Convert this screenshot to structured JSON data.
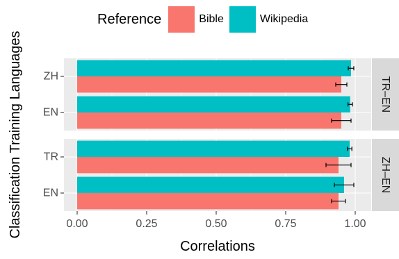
{
  "chart_data": {
    "type": "bar",
    "orientation": "horizontal",
    "xlabel": "Correlations",
    "ylabel": "Classification Training Languages",
    "xlim": [
      0,
      1.05
    ],
    "x_ticks": [
      "0.00",
      "0.25",
      "0.50",
      "0.75",
      "1.00"
    ],
    "x_tick_values": [
      0,
      0.25,
      0.5,
      0.75,
      1.0
    ],
    "grid": true,
    "legend": {
      "title": "Reference",
      "position": "top",
      "entries": [
        {
          "name": "Bible",
          "color": "#F8766D"
        },
        {
          "name": "Wikipedia",
          "color": "#00BFC4"
        }
      ]
    },
    "panels": [
      {
        "strip_label": "TR–EN",
        "categories": [
          "ZH",
          "EN"
        ],
        "series": [
          {
            "name": "Wikipedia",
            "values": [
              0.985,
              0.982
            ],
            "error": [
              0.01,
              0.008
            ]
          },
          {
            "name": "Bible",
            "values": [
              0.95,
              0.95
            ],
            "error": [
              0.02,
              0.035
            ]
          }
        ]
      },
      {
        "strip_label": "ZH–EN",
        "categories": [
          "TR",
          "EN"
        ],
        "series": [
          {
            "name": "Wikipedia",
            "values": [
              0.98,
              0.96
            ],
            "error": [
              0.008,
              0.035
            ]
          },
          {
            "name": "Bible",
            "values": [
              0.94,
              0.94
            ],
            "error": [
              0.045,
              0.025
            ]
          }
        ]
      }
    ]
  }
}
